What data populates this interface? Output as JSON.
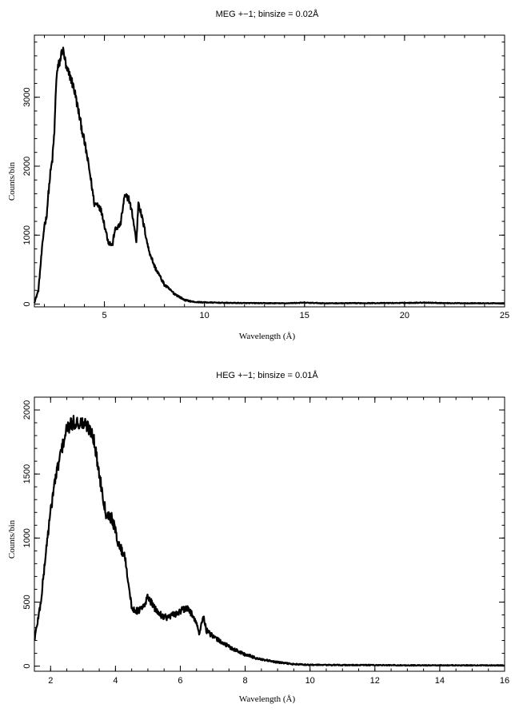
{
  "chart_data": [
    {
      "type": "line",
      "title": "MEG +−1; binsize = 0.02Å",
      "xlabel": "Wavelength (Å)",
      "ylabel": "Counts/bin",
      "xlim": [
        1.5,
        25
      ],
      "ylim": [
        -40,
        3900
      ],
      "xticks": [
        5,
        10,
        15,
        20,
        25
      ],
      "yticks": [
        0,
        1000,
        2000,
        3000
      ],
      "grid": false,
      "series": [
        {
          "x": [
            1.5,
            1.7,
            1.85,
            2.0,
            2.1,
            2.2,
            2.3,
            2.4,
            2.5,
            2.6,
            2.7,
            2.8,
            2.9,
            3.0,
            3.1,
            3.2,
            3.3,
            3.5,
            3.7,
            3.9,
            4.1,
            4.3,
            4.5,
            4.7,
            4.9,
            5.0,
            5.2,
            5.4,
            5.5,
            5.6,
            5.8,
            6.0,
            6.2,
            6.4,
            6.5,
            6.6,
            6.7,
            6.8,
            7.0,
            7.2,
            7.5,
            8.0,
            8.5,
            9.0,
            9.5,
            10.0,
            11.0,
            12.0,
            14.0,
            15.0,
            16.0,
            18.0,
            20.0,
            21.0,
            22.0,
            24.0,
            25.0
          ],
          "y": [
            20,
            200,
            700,
            1150,
            1250,
            1600,
            1900,
            2100,
            2500,
            3300,
            3450,
            3550,
            3700,
            3600,
            3400,
            3350,
            3300,
            3100,
            2800,
            2500,
            2200,
            1850,
            1450,
            1450,
            1300,
            1150,
            900,
            850,
            1050,
            1100,
            1150,
            1550,
            1550,
            1300,
            1100,
            900,
            1500,
            1350,
            1100,
            800,
            550,
            280,
            150,
            60,
            30,
            25,
            18,
            15,
            12,
            20,
            12,
            14,
            16,
            22,
            14,
            12,
            12
          ]
        }
      ]
    },
    {
      "type": "line",
      "title": "HEG +−1; binsize = 0.01Å",
      "xlabel": "Wavelength (Å)",
      "ylabel": "Counts/bin",
      "xlim": [
        1.5,
        16
      ],
      "ylim": [
        -40,
        2100
      ],
      "xticks": [
        2,
        4,
        6,
        8,
        10,
        12,
        14,
        16
      ],
      "yticks": [
        0,
        500,
        1000,
        1500,
        2000
      ],
      "grid": false,
      "series": [
        {
          "x": [
            1.5,
            1.7,
            1.9,
            2.1,
            2.3,
            2.5,
            2.7,
            2.9,
            3.1,
            3.3,
            3.5,
            3.7,
            3.9,
            4.1,
            4.3,
            4.5,
            4.7,
            4.9,
            5.0,
            5.2,
            5.4,
            5.6,
            5.8,
            6.0,
            6.2,
            6.4,
            6.6,
            6.7,
            6.8,
            7.0,
            7.2,
            7.5,
            8.0,
            8.5,
            9.0,
            9.5,
            10.0,
            11.0,
            12.0,
            13.0,
            14.0,
            15.0,
            16.0
          ],
          "y": [
            200,
            500,
            1000,
            1400,
            1650,
            1850,
            1900,
            1900,
            1880,
            1820,
            1500,
            1200,
            1150,
            950,
            850,
            450,
            430,
            470,
            550,
            450,
            400,
            380,
            400,
            430,
            450,
            400,
            250,
            400,
            280,
            230,
            200,
            150,
            90,
            50,
            30,
            15,
            10,
            8,
            8,
            6,
            6,
            6,
            6
          ]
        }
      ]
    }
  ]
}
